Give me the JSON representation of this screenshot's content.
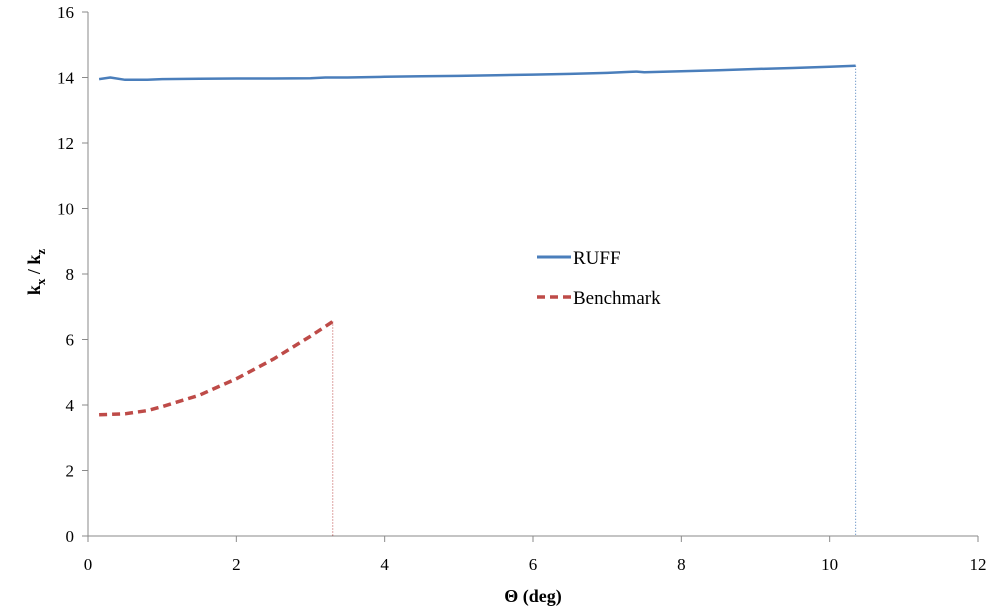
{
  "chart_data": {
    "type": "line",
    "title": "",
    "xlabel": "Θ (deg)",
    "ylabel": {
      "main": "k",
      "sub_x": "x",
      "sep": " / ",
      "main2": "k",
      "sub_z": "z"
    },
    "xlim": [
      0,
      12
    ],
    "ylim": [
      0,
      16
    ],
    "xticks": [
      0,
      2,
      4,
      6,
      8,
      10,
      12
    ],
    "yticks": [
      0,
      2,
      4,
      6,
      8,
      10,
      12,
      14,
      16
    ],
    "grid": false,
    "legend": "center",
    "series": [
      {
        "name": "RUFF",
        "color": "#4a7ebb",
        "style": "solid",
        "x": [
          0.15,
          0.3,
          0.5,
          0.8,
          1.0,
          1.5,
          2.0,
          2.5,
          3.0,
          3.2,
          3.5,
          4.0,
          4.5,
          5.0,
          5.5,
          6.0,
          6.5,
          7.0,
          7.3,
          7.4,
          7.5,
          8.0,
          8.5,
          9.0,
          9.5,
          10.0,
          10.35
        ],
        "y": [
          13.95,
          14.0,
          13.93,
          13.93,
          13.95,
          13.96,
          13.97,
          13.97,
          13.98,
          14.0,
          14.0,
          14.02,
          14.04,
          14.05,
          14.07,
          14.09,
          14.11,
          14.14,
          14.17,
          14.18,
          14.16,
          14.19,
          14.22,
          14.26,
          14.29,
          14.33,
          14.36
        ],
        "drop_line_x": 10.35
      },
      {
        "name": "Benchmark",
        "color": "#be4b48",
        "style": "dashed",
        "x": [
          0.15,
          0.5,
          0.8,
          1.0,
          1.5,
          2.0,
          2.5,
          3.0,
          3.3
        ],
        "y": [
          3.7,
          3.73,
          3.83,
          3.95,
          4.3,
          4.8,
          5.4,
          6.1,
          6.55
        ],
        "drop_line_x": 3.3
      }
    ]
  }
}
